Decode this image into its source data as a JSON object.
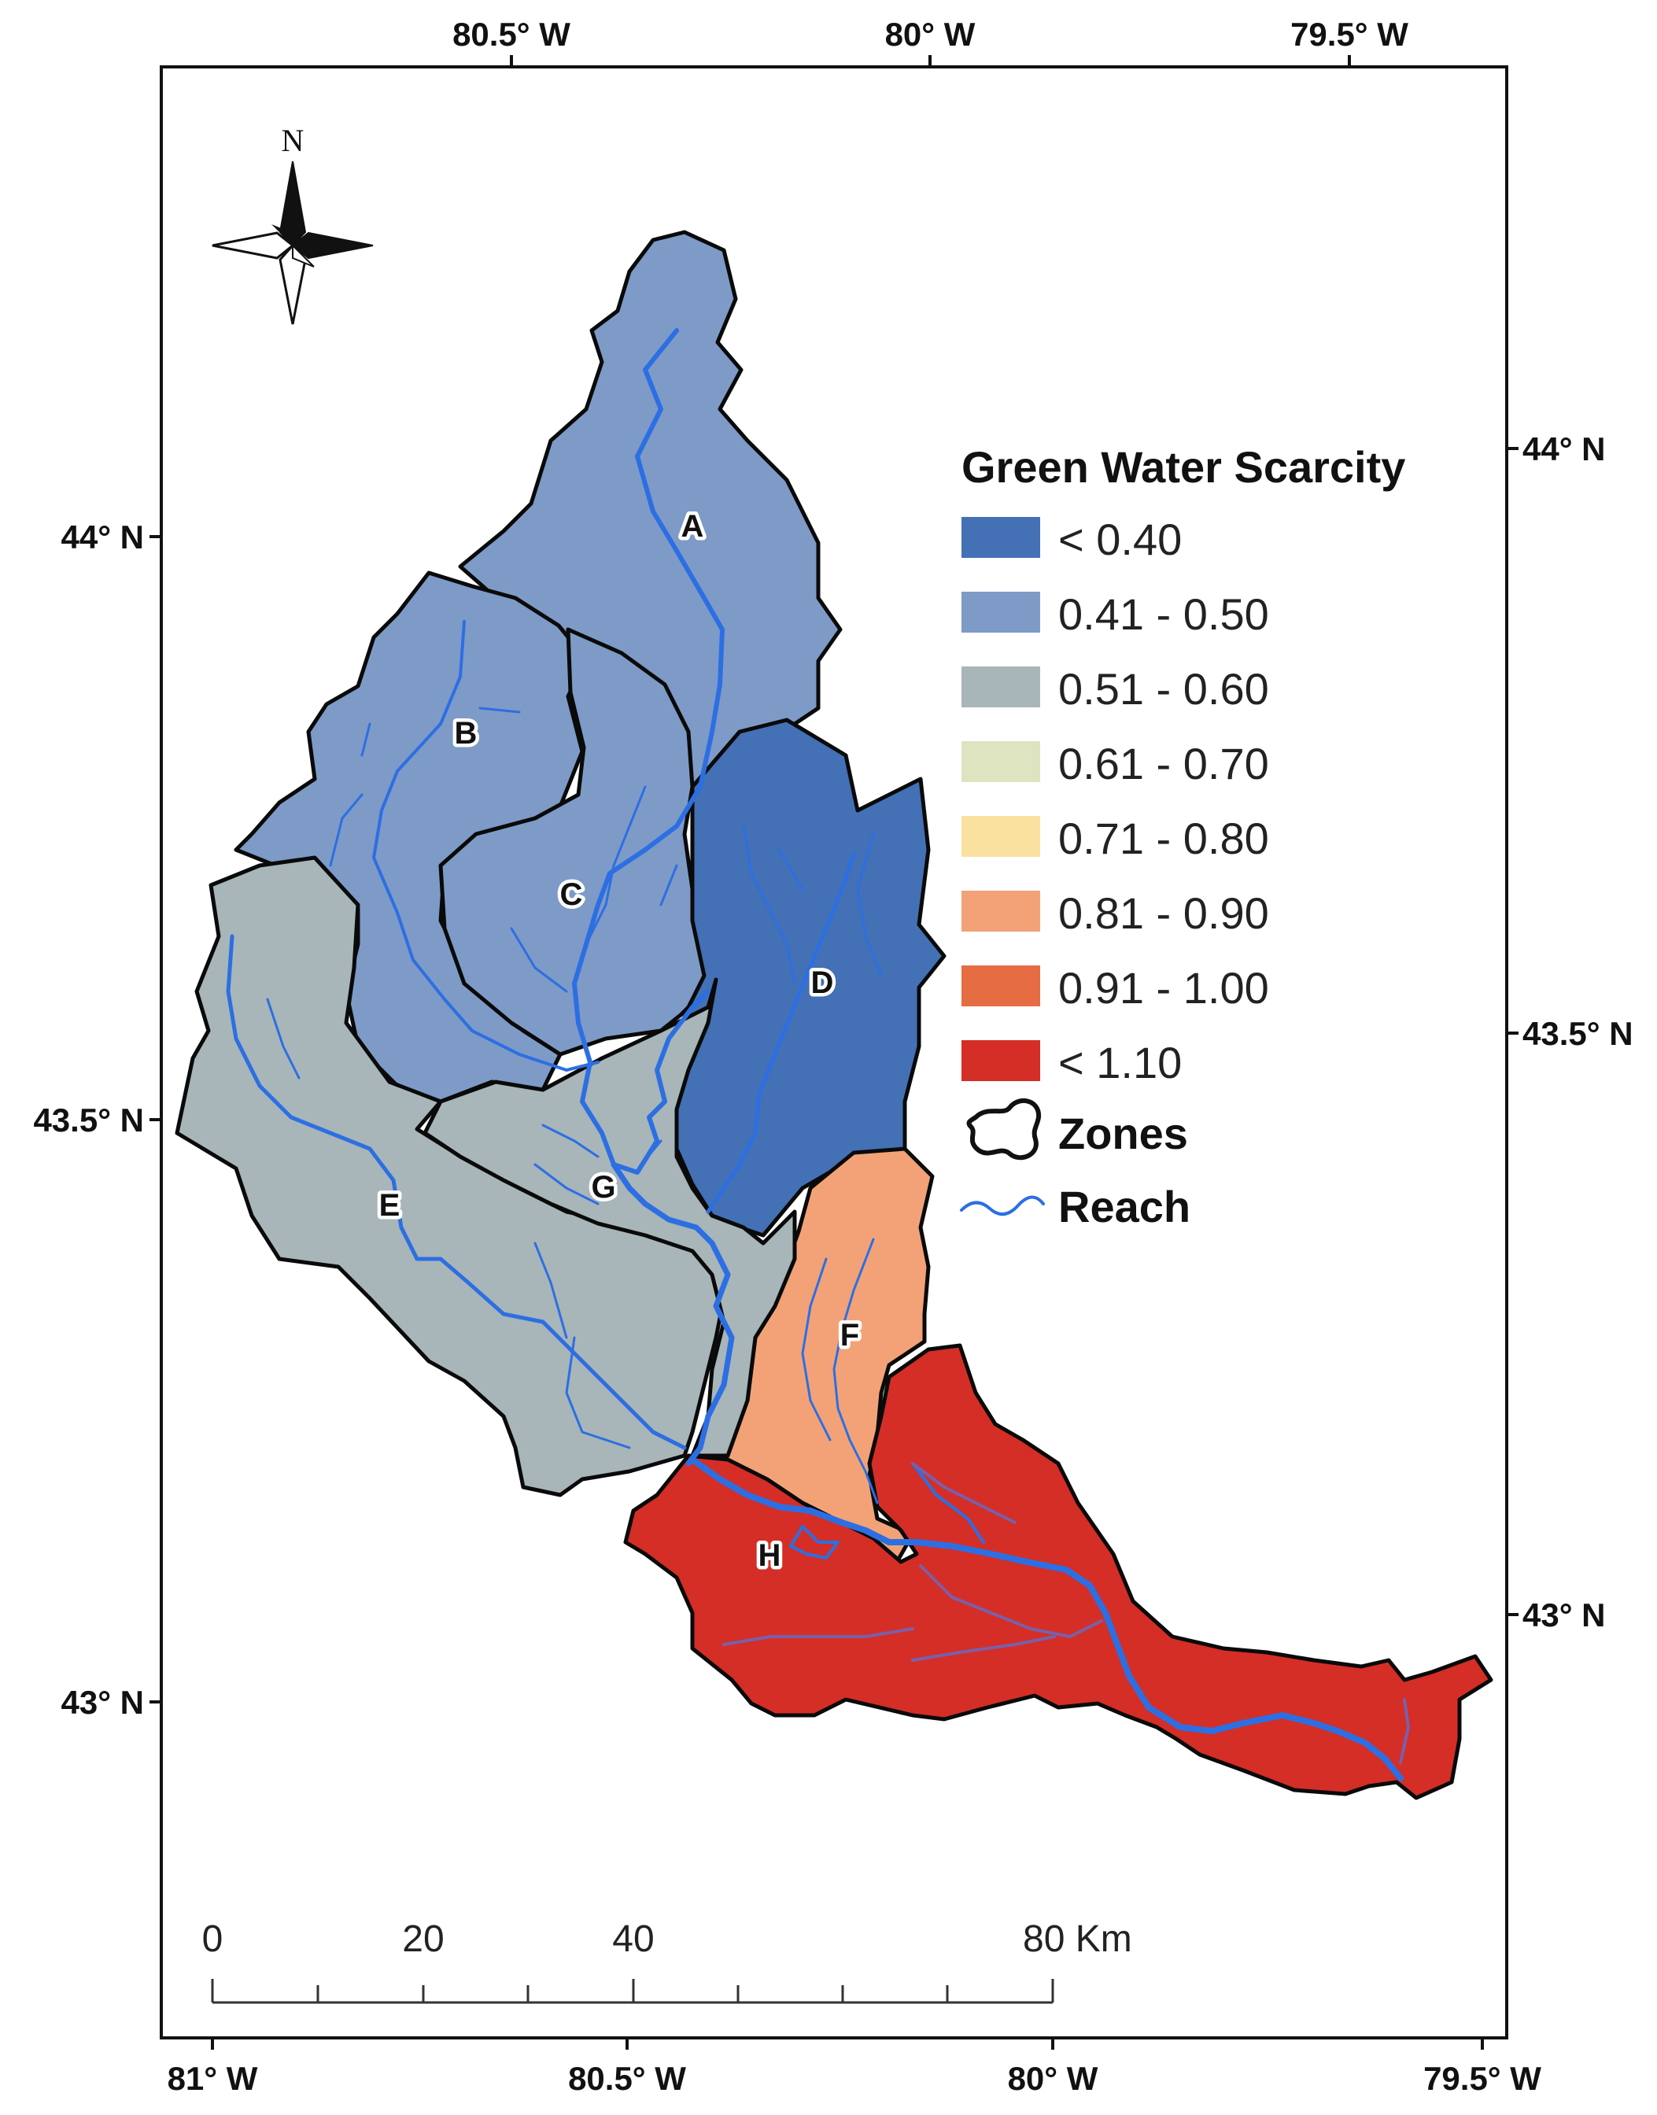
{
  "graticule": {
    "top_labels": [
      "80.5° W",
      "80° W",
      "79.5° W"
    ],
    "bottom_labels": [
      "81° W",
      "80.5° W",
      "80° W",
      "79.5° W"
    ],
    "left_labels": [
      "44° N",
      "43.5° N",
      "43° N"
    ],
    "right_labels": [
      "44° N",
      "43.5° N",
      "43° N"
    ]
  },
  "north_arrow": {
    "label": "N"
  },
  "zones": [
    {
      "id": "A",
      "label": "A",
      "class": "0.41 - 0.50",
      "color": "#7e9ac7"
    },
    {
      "id": "B",
      "label": "B",
      "class": "0.41 - 0.50",
      "color": "#7e9ac7"
    },
    {
      "id": "C",
      "label": "C",
      "class": "0.41 - 0.50",
      "color": "#7e9ac7"
    },
    {
      "id": "D",
      "label": "D",
      "class": "< 0.40",
      "color": "#4470b5"
    },
    {
      "id": "E",
      "label": "E",
      "class": "0.51 - 0.60",
      "color": "#a8b5b9"
    },
    {
      "id": "F",
      "label": "F",
      "class": "0.81 - 0.90",
      "color": "#f3a277"
    },
    {
      "id": "G",
      "label": "G",
      "class": "0.51 - 0.60",
      "color": "#a8b5b9"
    },
    {
      "id": "H",
      "label": "H",
      "class": "< 1.10",
      "color": "#d42e27"
    }
  ],
  "legend": {
    "title": "Green Water Scarcity",
    "classes": [
      {
        "label": "< 0.40",
        "color": "#4470b5"
      },
      {
        "label": "0.41 - 0.50",
        "color": "#7e9ac7"
      },
      {
        "label": "0.51 - 0.60",
        "color": "#a8b5b9"
      },
      {
        "label": "0.61 - 0.70",
        "color": "#dfe4c0"
      },
      {
        "label": "0.71 - 0.80",
        "color": "#fbe1a0"
      },
      {
        "label": "0.81 - 0.90",
        "color": "#f3a277"
      },
      {
        "label": "0.91 - 1.00",
        "color": "#e66c44"
      },
      {
        "label": "< 1.10",
        "color": "#d42e27"
      }
    ],
    "zones_label": "Zones",
    "reach_label": "Reach",
    "reach_color": "#2c6fe3"
  },
  "scale_bar": {
    "labels": [
      "0",
      "20",
      "40",
      "80 Km"
    ]
  }
}
